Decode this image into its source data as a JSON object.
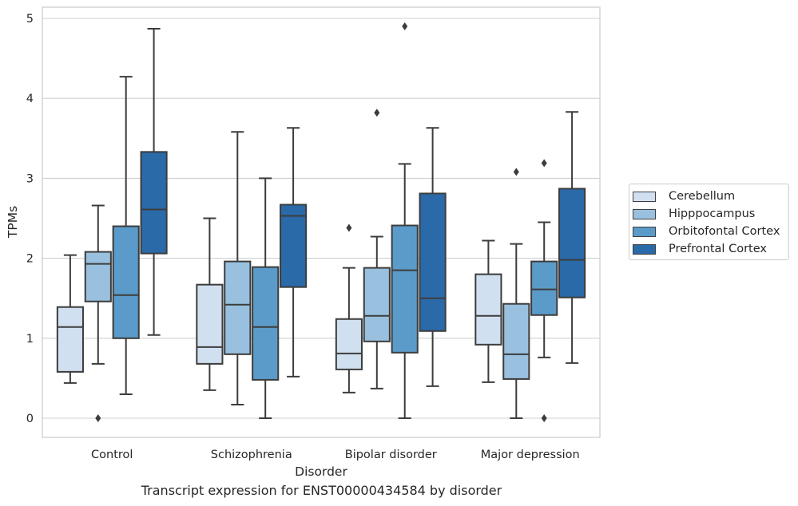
{
  "chart_data": {
    "type": "box",
    "title": "",
    "caption": "Transcript expression for ENST00000434584 by disorder",
    "xlabel": "Disorder",
    "ylabel": "TPMs",
    "ylim": [
      -0.24,
      5.15
    ],
    "yticks": [
      0,
      1,
      2,
      3,
      4,
      5
    ],
    "grid": true,
    "legend_position": "right",
    "categories": [
      "Control",
      "Schizophrenia",
      "Bipolar disorder",
      "Major depression"
    ],
    "series": [
      {
        "name": "Cerebellum",
        "color": "#d1e0f0",
        "boxes": [
          {
            "whislo": 0.44,
            "q1": 0.58,
            "med": 1.14,
            "q3": 1.39,
            "whishi": 2.04,
            "fliers": []
          },
          {
            "whislo": 0.35,
            "q1": 0.68,
            "med": 0.89,
            "q3": 1.67,
            "whishi": 2.5,
            "fliers": []
          },
          {
            "whislo": 0.32,
            "q1": 0.61,
            "med": 0.81,
            "q3": 1.24,
            "whishi": 1.88,
            "fliers": [
              2.38
            ]
          },
          {
            "whislo": 0.45,
            "q1": 0.92,
            "med": 1.28,
            "q3": 1.8,
            "whishi": 2.22,
            "fliers": []
          }
        ]
      },
      {
        "name": "Hipppocampus",
        "color": "#99c0de",
        "boxes": [
          {
            "whislo": 0.68,
            "q1": 1.46,
            "med": 1.93,
            "q3": 2.08,
            "whishi": 2.66,
            "fliers": [
              0.0
            ]
          },
          {
            "whislo": 0.17,
            "q1": 0.8,
            "med": 1.42,
            "q3": 1.96,
            "whishi": 3.58,
            "fliers": []
          },
          {
            "whislo": 0.37,
            "q1": 0.96,
            "med": 1.28,
            "q3": 1.88,
            "whishi": 2.27,
            "fliers": [
              3.82
            ]
          },
          {
            "whislo": 0.0,
            "q1": 0.49,
            "med": 0.8,
            "q3": 1.43,
            "whishi": 2.18,
            "fliers": [
              3.08
            ]
          }
        ]
      },
      {
        "name": "Orbitofontal Cortex",
        "color": "#5b9bc9",
        "boxes": [
          {
            "whislo": 0.3,
            "q1": 1.0,
            "med": 1.54,
            "q3": 2.4,
            "whishi": 4.27,
            "fliers": []
          },
          {
            "whislo": 0.0,
            "q1": 0.48,
            "med": 1.14,
            "q3": 1.89,
            "whishi": 3.0,
            "fliers": []
          },
          {
            "whislo": 0.0,
            "q1": 0.82,
            "med": 1.85,
            "q3": 2.41,
            "whishi": 3.18,
            "fliers": [
              4.9
            ]
          },
          {
            "whislo": 0.76,
            "q1": 1.29,
            "med": 1.61,
            "q3": 1.96,
            "whishi": 2.45,
            "fliers": [
              3.19,
              0.0
            ]
          }
        ]
      },
      {
        "name": "Prefrontal Cortex",
        "color": "#2a6aa8",
        "boxes": [
          {
            "whislo": 1.04,
            "q1": 2.06,
            "med": 2.61,
            "q3": 3.33,
            "whishi": 4.87,
            "fliers": []
          },
          {
            "whislo": 0.52,
            "q1": 1.64,
            "med": 2.53,
            "q3": 2.67,
            "whishi": 3.63,
            "fliers": []
          },
          {
            "whislo": 0.4,
            "q1": 1.09,
            "med": 1.5,
            "q3": 2.81,
            "whishi": 3.63,
            "fliers": []
          },
          {
            "whislo": 0.69,
            "q1": 1.51,
            "med": 1.98,
            "q3": 2.87,
            "whishi": 3.83,
            "fliers": []
          }
        ]
      }
    ]
  }
}
